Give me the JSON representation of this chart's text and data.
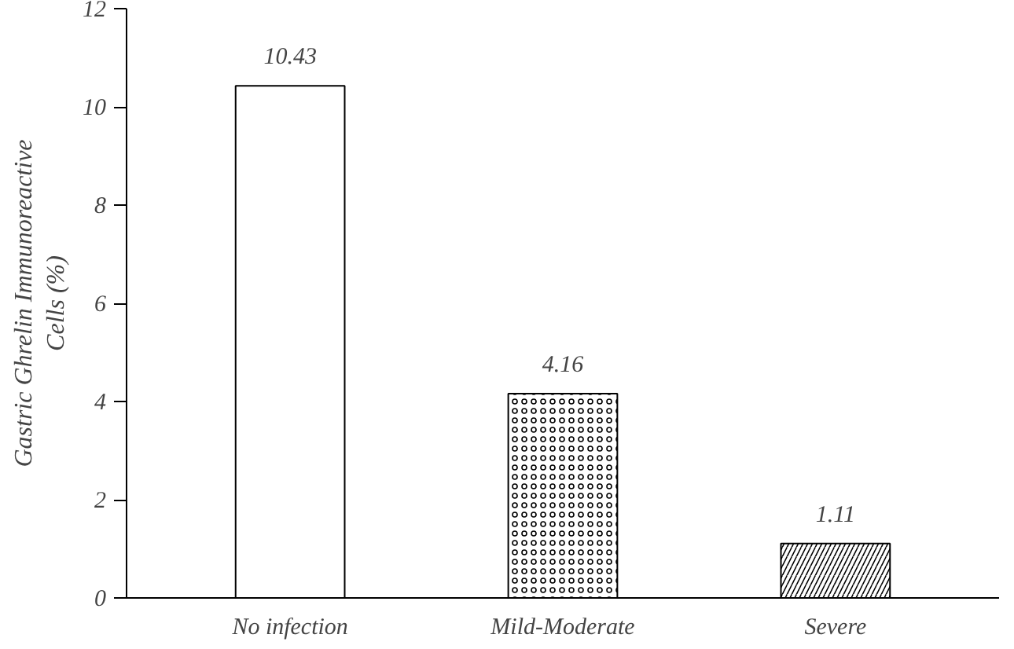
{
  "chart_data": {
    "type": "bar",
    "ylabel": "Gastric Ghrelin Immunoreactive\nCells (%)",
    "categories": [
      "No infection",
      "Mild-Moderate",
      "Severe"
    ],
    "values": [
      10.43,
      4.16,
      1.11
    ],
    "colors": [
      "#ffffff",
      "#ffffff",
      "#ffffff"
    ],
    "ylim": [
      0,
      12
    ],
    "yticks": [
      0,
      2,
      4,
      6,
      8,
      10,
      12
    ],
    "grid": false,
    "data_labels": true
  }
}
